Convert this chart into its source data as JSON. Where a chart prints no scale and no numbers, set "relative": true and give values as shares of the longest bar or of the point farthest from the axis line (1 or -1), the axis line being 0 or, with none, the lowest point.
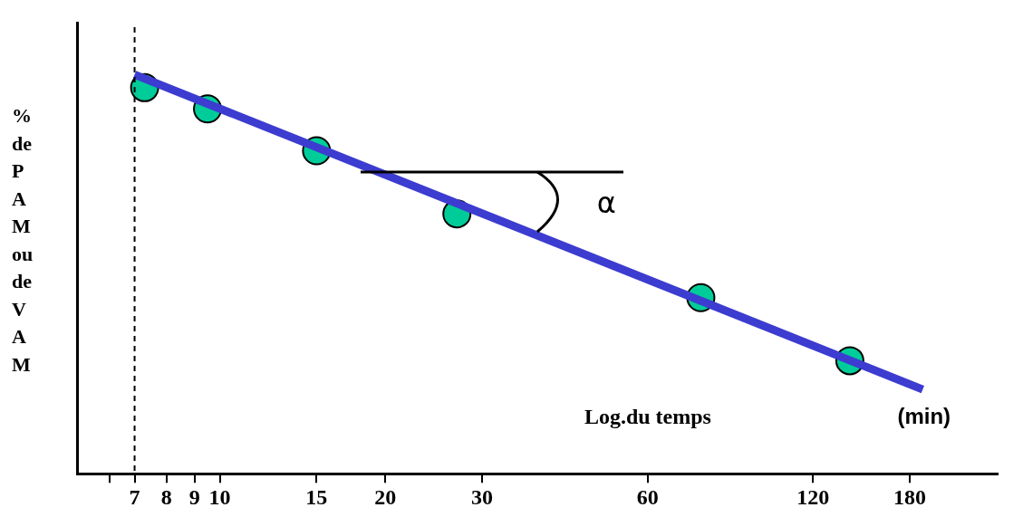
{
  "chart_data": {
    "type": "scatter",
    "xlabel": "Log.du temps",
    "ylabel": "% de PAM ou de VAM",
    "log": "x",
    "relative": true,
    "grid": false,
    "legend": false,
    "xlim": [
      5.5,
      260
    ],
    "xticks": [
      {
        "value": 6.3,
        "label": null
      },
      7,
      8,
      9,
      10,
      15,
      20,
      30,
      60,
      120,
      180
    ],
    "series": [
      {
        "type": "line",
        "color": "#3c3cd0",
        "x": [
          7,
          190
        ],
        "values": [
          1,
          0.211
        ],
        "marker": "none",
        "line_style": "solid"
      },
      {
        "color": "#00cc99",
        "x": [
          7.3,
          9.5,
          15,
          27,
          75,
          140
        ],
        "values": [
          0.967,
          0.914,
          0.809,
          0.651,
          0.441,
          0.283
        ],
        "marker": "circle"
      }
    ],
    "ref_lines": [
      {
        "axis": "x",
        "value": 7,
        "line_style": "dashed",
        "color": "#000000"
      }
    ],
    "annotations": [
      "α",
      "(min)"
    ]
  }
}
